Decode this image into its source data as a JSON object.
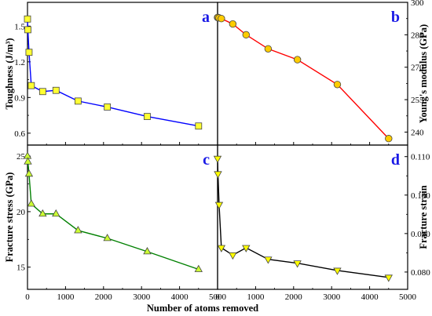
{
  "figure": {
    "xlabel": "Number of atoms removed"
  },
  "chart_data": [
    {
      "panel": "a",
      "type": "line",
      "ylabel": "Toughness (J/m³)",
      "xlim": [
        0,
        5000
      ],
      "ylim": [
        0.5,
        1.7
      ],
      "xticks": [
        0,
        1000,
        2000,
        3000,
        4000,
        5000
      ],
      "xtick_labels": [],
      "yticks": [
        0.6,
        0.9,
        1.2,
        1.5
      ],
      "ytick_labels": [
        "0.6",
        "0.9",
        "1.2",
        "1.5"
      ],
      "ytick_side": "left",
      "color": "#0000ff",
      "marker": "square",
      "marker_color": "#ffff33",
      "x": [
        0,
        10,
        40,
        100,
        400,
        750,
        1330,
        2100,
        3150,
        4500
      ],
      "y": [
        1.56,
        1.47,
        1.28,
        1.0,
        0.95,
        0.96,
        0.87,
        0.82,
        0.74,
        0.66
      ]
    },
    {
      "panel": "b",
      "type": "line",
      "ylabel": "Young's modulus (GPa)",
      "xlim": [
        0,
        5000
      ],
      "ylim": [
        234,
        300
      ],
      "xticks": [
        0,
        1000,
        2000,
        3000,
        4000,
        5000
      ],
      "xtick_labels": [],
      "yticks": [
        240,
        255,
        270,
        285,
        300
      ],
      "ytick_labels": [
        "240",
        "255",
        "270",
        "285",
        "300"
      ],
      "ytick_side": "right",
      "color": "#ff0000",
      "marker": "circle",
      "marker_color": "#ffcc00",
      "x": [
        0,
        10,
        40,
        100,
        400,
        750,
        1330,
        2100,
        3150,
        4500
      ],
      "y": [
        293,
        293,
        292.8,
        292.5,
        290,
        285,
        278.5,
        273.5,
        262,
        237
      ]
    },
    {
      "panel": "c",
      "type": "line",
      "ylabel": "Fracture stress (GPa)",
      "xlim": [
        0,
        5000
      ],
      "ylim": [
        13,
        26
      ],
      "xticks": [
        0,
        1000,
        2000,
        3000,
        4000,
        5000
      ],
      "xtick_labels": [
        "0",
        "1000",
        "2000",
        "3000",
        "4000",
        "5000"
      ],
      "yticks": [
        15,
        20,
        25
      ],
      "ytick_labels": [
        "15",
        "20",
        "25"
      ],
      "ytick_side": "left",
      "color": "#008000",
      "marker": "triangle-up",
      "marker_color": "#ccff33",
      "x": [
        0,
        10,
        40,
        100,
        400,
        750,
        1330,
        2100,
        3150,
        4500
      ],
      "y": [
        25.0,
        24.5,
        23.4,
        20.7,
        19.8,
        19.8,
        18.3,
        17.6,
        16.4,
        14.8
      ]
    },
    {
      "panel": "d",
      "type": "line",
      "ylabel": "Fracture strain",
      "xlim": [
        0,
        5000
      ],
      "ylim": [
        0.0755,
        0.113
      ],
      "xticks": [
        0,
        1000,
        2000,
        3000,
        4000,
        5000
      ],
      "xtick_labels": [
        "0",
        "1000",
        "2000",
        "3000",
        "4000",
        "5000"
      ],
      "yticks": [
        0.08,
        0.09,
        0.1,
        0.11
      ],
      "ytick_labels": [
        "0.080",
        "0.090",
        "0.100",
        "0.110"
      ],
      "ytick_side": "right",
      "color": "#000000",
      "marker": "triangle-down",
      "marker_color": "#ffff00",
      "x": [
        0,
        10,
        40,
        100,
        400,
        750,
        1330,
        2100,
        3150,
        4500
      ],
      "y": [
        0.1095,
        0.1055,
        0.0975,
        0.0863,
        0.0844,
        0.0863,
        0.0833,
        0.0823,
        0.0804,
        0.0786
      ]
    }
  ]
}
